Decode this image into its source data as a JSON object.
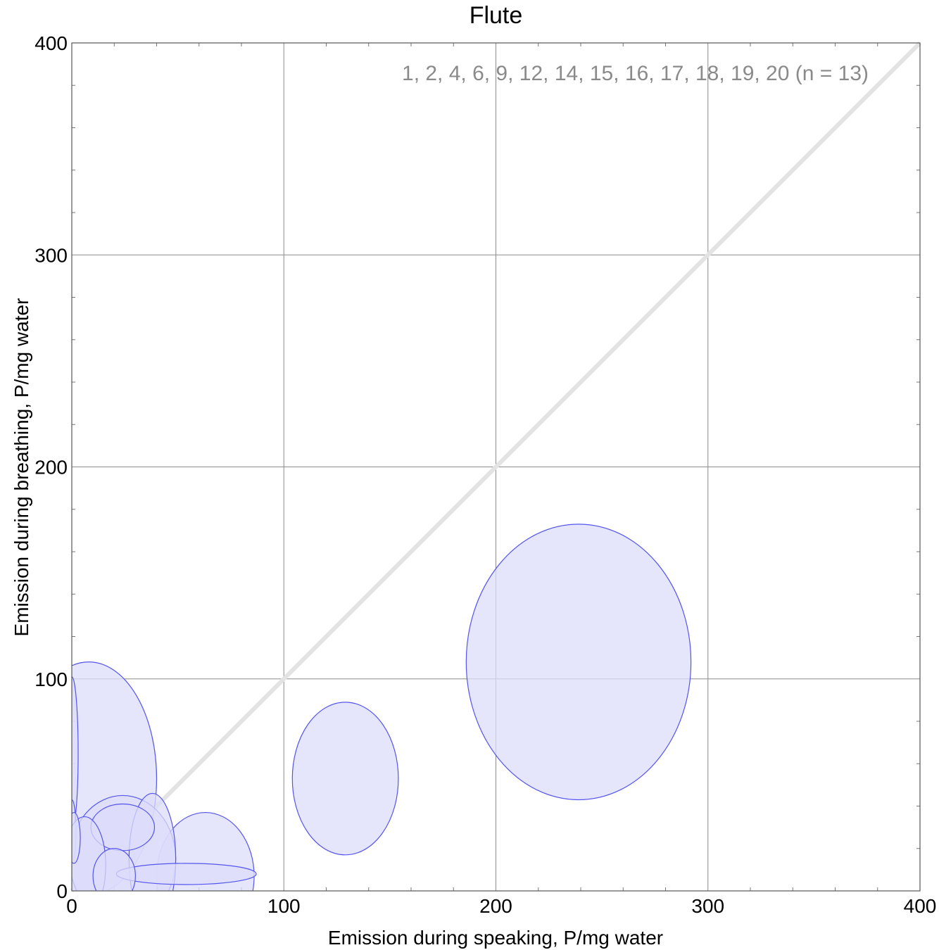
{
  "chart_data": {
    "type": "scatter",
    "title": "Flute",
    "xlabel": "Emission during speaking,   P/mg water",
    "ylabel": "Emission during breathing,   P/mg water",
    "xlim": [
      0,
      400
    ],
    "ylim": [
      0,
      400
    ],
    "x_ticks": [
      "0",
      "100",
      "200",
      "300",
      "400"
    ],
    "y_ticks": [
      "0",
      "100",
      "200",
      "300",
      "400"
    ],
    "grid": true,
    "annotation": "1, 2, 4, 6, 9, 12, 14, 15, 16, 17, 18, 19, 20  (n = 13)",
    "reference_line": {
      "from": [
        0,
        0
      ],
      "to": [
        400,
        400
      ],
      "color": "#e3e3e3"
    },
    "ellipse_fill": "#dcdcfb",
    "ellipse_stroke": "#5555ee",
    "series": [
      {
        "points": [
          {
            "x": 239,
            "y": 108,
            "rx": 53,
            "ry": 65
          },
          {
            "x": 129,
            "y": 53,
            "rx": 25,
            "ry": 36
          },
          {
            "x": 8,
            "y": 53,
            "rx": 32,
            "ry": 55
          },
          {
            "x": 63,
            "y": 7,
            "rx": 23,
            "ry": 30
          },
          {
            "x": 24,
            "y": 15,
            "rx": 25,
            "ry": 30
          },
          {
            "x": 38,
            "y": 15,
            "rx": 11,
            "ry": 31
          },
          {
            "x": 24,
            "y": 30,
            "rx": 15,
            "ry": 11
          },
          {
            "x": 54,
            "y": 8,
            "rx": 33,
            "ry": 5
          },
          {
            "x": 0,
            "y": 65,
            "rx": 3,
            "ry": 36
          },
          {
            "x": 0,
            "y": 28,
            "rx": 2,
            "ry": 15
          },
          {
            "x": 6,
            "y": 12,
            "rx": 10,
            "ry": 23
          },
          {
            "x": 20,
            "y": 7,
            "rx": 10,
            "ry": 13
          },
          {
            "x": 1,
            "y": 25,
            "rx": 3,
            "ry": 12
          }
        ]
      }
    ]
  }
}
